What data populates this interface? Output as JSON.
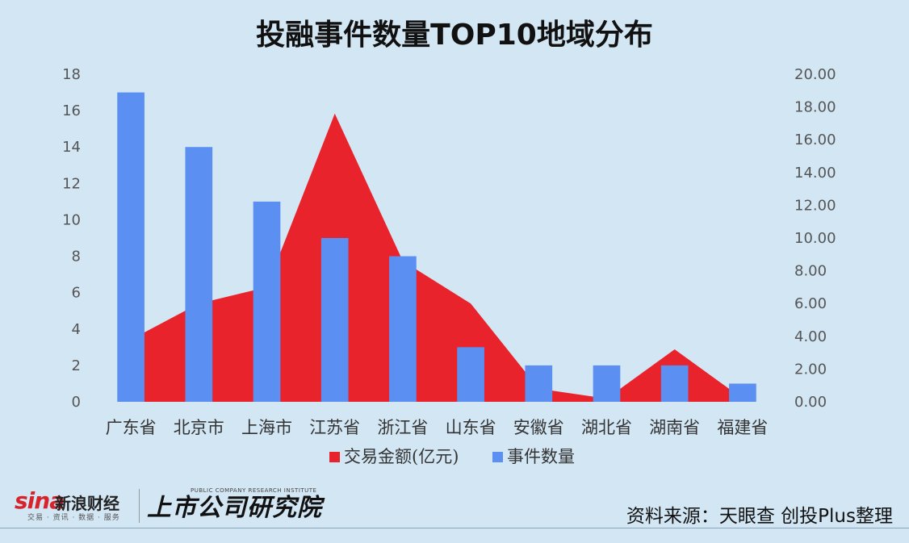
{
  "title": "投融事件数量TOP10地域分布",
  "chart_data": {
    "type": "bar+area",
    "categories": [
      "广东省",
      "北京市",
      "上海市",
      "江苏省",
      "浙江省",
      "山东省",
      "安徽省",
      "湖北省",
      "湖南省",
      "福建省"
    ],
    "series": [
      {
        "name": "交易金额(亿元)",
        "type": "area",
        "axis": "right",
        "color": "#e8232b",
        "values": [
          3.8,
          6.0,
          7.0,
          17.6,
          8.6,
          6.0,
          0.8,
          0.2,
          3.2,
          0.2
        ]
      },
      {
        "name": "事件数量",
        "type": "bar",
        "axis": "left",
        "color": "#5b8ff2",
        "values": [
          17,
          14,
          11,
          9,
          8,
          3,
          2,
          2,
          2,
          1
        ]
      }
    ],
    "y_left": {
      "min": 0,
      "max": 18,
      "step": 2,
      "ticks": [
        "0",
        "2",
        "4",
        "6",
        "8",
        "10",
        "12",
        "14",
        "16",
        "18"
      ]
    },
    "y_right": {
      "min": 0,
      "max": 20,
      "step": 2,
      "ticks": [
        "0.00",
        "2.00",
        "4.00",
        "6.00",
        "8.00",
        "10.00",
        "12.00",
        "14.00",
        "16.00",
        "18.00",
        "20.00"
      ]
    },
    "legend": "bottom",
    "grid": false
  },
  "footer": {
    "sina_logo": "sina",
    "sina_cn": "新浪财经",
    "sina_sub": "交易 · 资讯 · 数据 · 服务",
    "research_logo": "上市公司研究院",
    "research_sub": "PUBLIC COMPANY RESEARCH INSTITUTE",
    "source": "资料来源：天眼查 创投Plus整理"
  }
}
